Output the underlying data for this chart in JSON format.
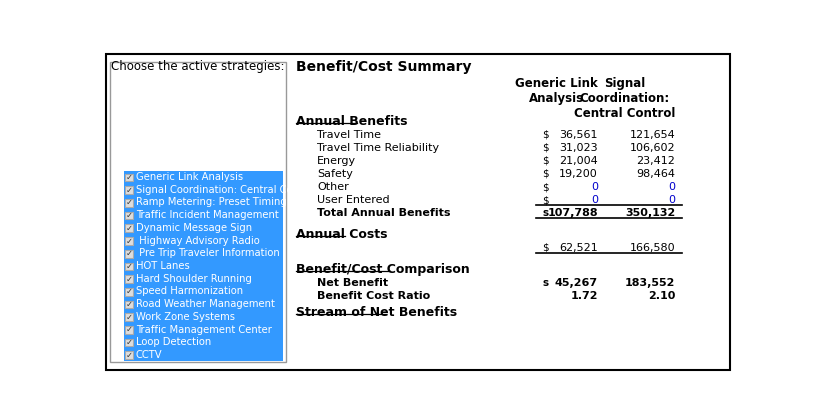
{
  "bg_color": "#ffffff",
  "border_color": "#000000",
  "left_panel": {
    "bg_color": "#3399ff",
    "border_color": "#808080",
    "label": "Choose the active strategies:",
    "label_color": "#000000",
    "items": [
      "Generic Link Analysis",
      "Signal Coordination: Central Control",
      "Ramp Metering: Preset Timing",
      "Traffic Incident Management",
      "Dynamic Message Sign",
      " Highway Advisory Radio",
      " Pre Trip Traveler Information",
      "HOT Lanes",
      "Hard Shoulder Running",
      "Speed Harmonization",
      "Road Weather Management",
      "Work Zone Systems",
      "Traffic Management Center",
      "Loop Detection",
      "CCTV"
    ],
    "item_color": "#ffffff"
  },
  "right_panel": {
    "title": "Benefit/Cost Summary",
    "col_headers": [
      "Generic Link\nAnalysis",
      "Signal\nCoordination:\nCentral Control"
    ],
    "sections": [
      {
        "name": "Annual Benefits",
        "underline": true,
        "bold": true,
        "rows": [
          {
            "label": "Travel Time",
            "dollar": true,
            "vals": [
              "36,561",
              "121,654"
            ],
            "bold": false,
            "zero_blue": false
          },
          {
            "label": "Travel Time Reliability",
            "dollar": true,
            "vals": [
              "31,023",
              "106,602"
            ],
            "bold": false,
            "zero_blue": false
          },
          {
            "label": "Energy",
            "dollar": true,
            "vals": [
              "21,004",
              "23,412"
            ],
            "bold": false,
            "zero_blue": false
          },
          {
            "label": "Safety",
            "dollar": true,
            "vals": [
              "19,200",
              "98,464"
            ],
            "bold": false,
            "zero_blue": false
          },
          {
            "label": "Other",
            "dollar": true,
            "vals": [
              "0",
              "0"
            ],
            "bold": false,
            "zero_blue": true
          },
          {
            "label": "User Entered",
            "dollar": true,
            "vals": [
              "0",
              "0"
            ],
            "bold": false,
            "zero_blue": true
          },
          {
            "label": "Total Annual Benefits",
            "dollar": true,
            "vals": [
              "107,788",
              "350,132"
            ],
            "bold": true,
            "zero_blue": false,
            "line_above": true
          }
        ],
        "line_below": true
      },
      {
        "name": "Annual Costs",
        "underline": true,
        "bold": true,
        "rows": [
          {
            "label": "",
            "dollar": true,
            "vals": [
              "62,521",
              "166,580"
            ],
            "bold": false,
            "zero_blue": false,
            "line_above": false
          }
        ],
        "line_below": true
      },
      {
        "name": "Benefit/Cost Comparison",
        "underline": true,
        "bold": true,
        "rows": [
          {
            "label": "Net Benefit",
            "dollar": true,
            "vals": [
              "45,267",
              "183,552"
            ],
            "bold": true,
            "zero_blue": false
          },
          {
            "label": "Benefit Cost Ratio",
            "dollar": false,
            "vals": [
              "1.72",
              "2.10"
            ],
            "bold": true,
            "zero_blue": false
          }
        ],
        "line_below": false
      },
      {
        "name": "Stream of Net Benefits",
        "underline": true,
        "bold": true,
        "rows": [],
        "line_below": false
      }
    ]
  }
}
